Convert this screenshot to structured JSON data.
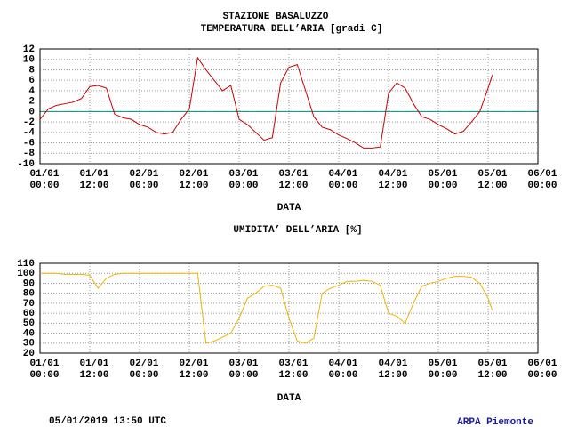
{
  "chart_data": [
    {
      "type": "line",
      "title": "STAZIONE BASALUZZO",
      "subtitle": "TEMPERATURA DELL’ARIA [gradi C]",
      "x_label": "DATA",
      "x": [
        0,
        2,
        4,
        6,
        8,
        10,
        12,
        14,
        16,
        18,
        20,
        22,
        24,
        26,
        28,
        30,
        32,
        34,
        36,
        38,
        40,
        42,
        44,
        46,
        48,
        50,
        52,
        54,
        56,
        58,
        60,
        62,
        64,
        66,
        68,
        70,
        72,
        74,
        76,
        78,
        80,
        82,
        84,
        86,
        88,
        90,
        92,
        94,
        96,
        98,
        100,
        102,
        104,
        106,
        108,
        109
      ],
      "series": [
        {
          "name": "TEMPERATURA",
          "color": "#cc0000",
          "values": [
            -1.5,
            0.5,
            1.2,
            1.5,
            1.8,
            2.5,
            4.8,
            5.0,
            4.5,
            -0.5,
            -1.2,
            -1.5,
            -2.5,
            -3.0,
            -4.0,
            -4.3,
            -4.0,
            -1.5,
            0.5,
            10.3,
            8,
            6,
            4,
            5,
            -1.5,
            -2.5,
            -4.0,
            -5.5,
            -5.0,
            5.5,
            8.5,
            9.0,
            4,
            -1,
            -3,
            -3.5,
            -4.5,
            -5.2,
            -6,
            -7,
            -7,
            -6.8,
            3.5,
            5.5,
            4.5,
            1.5,
            -1.0,
            -1.5,
            -2.5,
            -3.3,
            -4.3,
            -3.8,
            -2,
            0,
            4.5,
            7
          ]
        }
      ],
      "xlim": [
        0,
        120
      ],
      "xticks": [
        {
          "value": 0,
          "label": "01/01\n00:00"
        },
        {
          "value": 12,
          "label": "01/01\n12:00"
        },
        {
          "value": 24,
          "label": "02/01\n00:00"
        },
        {
          "value": 36,
          "label": "02/01\n12:00"
        },
        {
          "value": 48,
          "label": "03/01\n00:00"
        },
        {
          "value": 60,
          "label": "03/01\n12:00"
        },
        {
          "value": 72,
          "label": "04/01\n00:00"
        },
        {
          "value": 84,
          "label": "04/01\n12:00"
        },
        {
          "value": 96,
          "label": "05/01\n00:00"
        },
        {
          "value": 108,
          "label": "05/01\n12:00"
        },
        {
          "value": 120,
          "label": "06/01\n00:00"
        }
      ],
      "ylim": [
        -10,
        12
      ],
      "yticks": [
        -10,
        -8,
        -6,
        -4,
        -2,
        0,
        2,
        4,
        6,
        8,
        10,
        12
      ],
      "grid": true,
      "hline": {
        "value": 0,
        "color": "#008b8b"
      }
    },
    {
      "type": "line",
      "title": "UMIDITA’ DELL’ARIA [%]",
      "x_label": "DATA",
      "x": [
        0,
        2,
        4,
        6,
        8,
        10,
        12,
        14,
        16,
        18,
        20,
        22,
        24,
        26,
        28,
        30,
        32,
        34,
        36,
        38,
        40,
        42,
        44,
        46,
        48,
        50,
        52,
        54,
        56,
        58,
        60,
        62,
        64,
        66,
        68,
        70,
        72,
        74,
        76,
        78,
        80,
        82,
        84,
        86,
        88,
        90,
        92,
        94,
        96,
        98,
        100,
        102,
        104,
        106,
        108,
        109
      ],
      "series": [
        {
          "name": "UMIDITA",
          "color": "#f0b400",
          "values": [
            100,
            100,
            100,
            99,
            99,
            99,
            98,
            85,
            95,
            99,
            100,
            100,
            100,
            100,
            100,
            100,
            100,
            100,
            100,
            100,
            30,
            32,
            36,
            40,
            55,
            75,
            80,
            87,
            88,
            85,
            55,
            32,
            30,
            35,
            80,
            85,
            88,
            92,
            92,
            93,
            92,
            88,
            60,
            57,
            50,
            70,
            87,
            90,
            92,
            95,
            97,
            97,
            96,
            90,
            75,
            63
          ]
        }
      ],
      "xlim": [
        0,
        120
      ],
      "xticks": [
        {
          "value": 0,
          "label": "01/01\n00:00"
        },
        {
          "value": 12,
          "label": "01/01\n12:00"
        },
        {
          "value": 24,
          "label": "02/01\n00:00"
        },
        {
          "value": 36,
          "label": "02/01\n12:00"
        },
        {
          "value": 48,
          "label": "03/01\n00:00"
        },
        {
          "value": 60,
          "label": "03/01\n12:00"
        },
        {
          "value": 72,
          "label": "04/01\n00:00"
        },
        {
          "value": 84,
          "label": "04/01\n12:00"
        },
        {
          "value": 96,
          "label": "05/01\n00:00"
        },
        {
          "value": 108,
          "label": "05/01\n12:00"
        },
        {
          "value": 120,
          "label": "06/01\n00:00"
        }
      ],
      "ylim": [
        20,
        110
      ],
      "yticks": [
        20,
        30,
        40,
        50,
        60,
        70,
        80,
        90,
        100,
        110
      ],
      "grid": true
    }
  ],
  "footer": {
    "timestamp": "05/01/2019 13:50 UTC",
    "source": "ARPA Piemonte"
  }
}
